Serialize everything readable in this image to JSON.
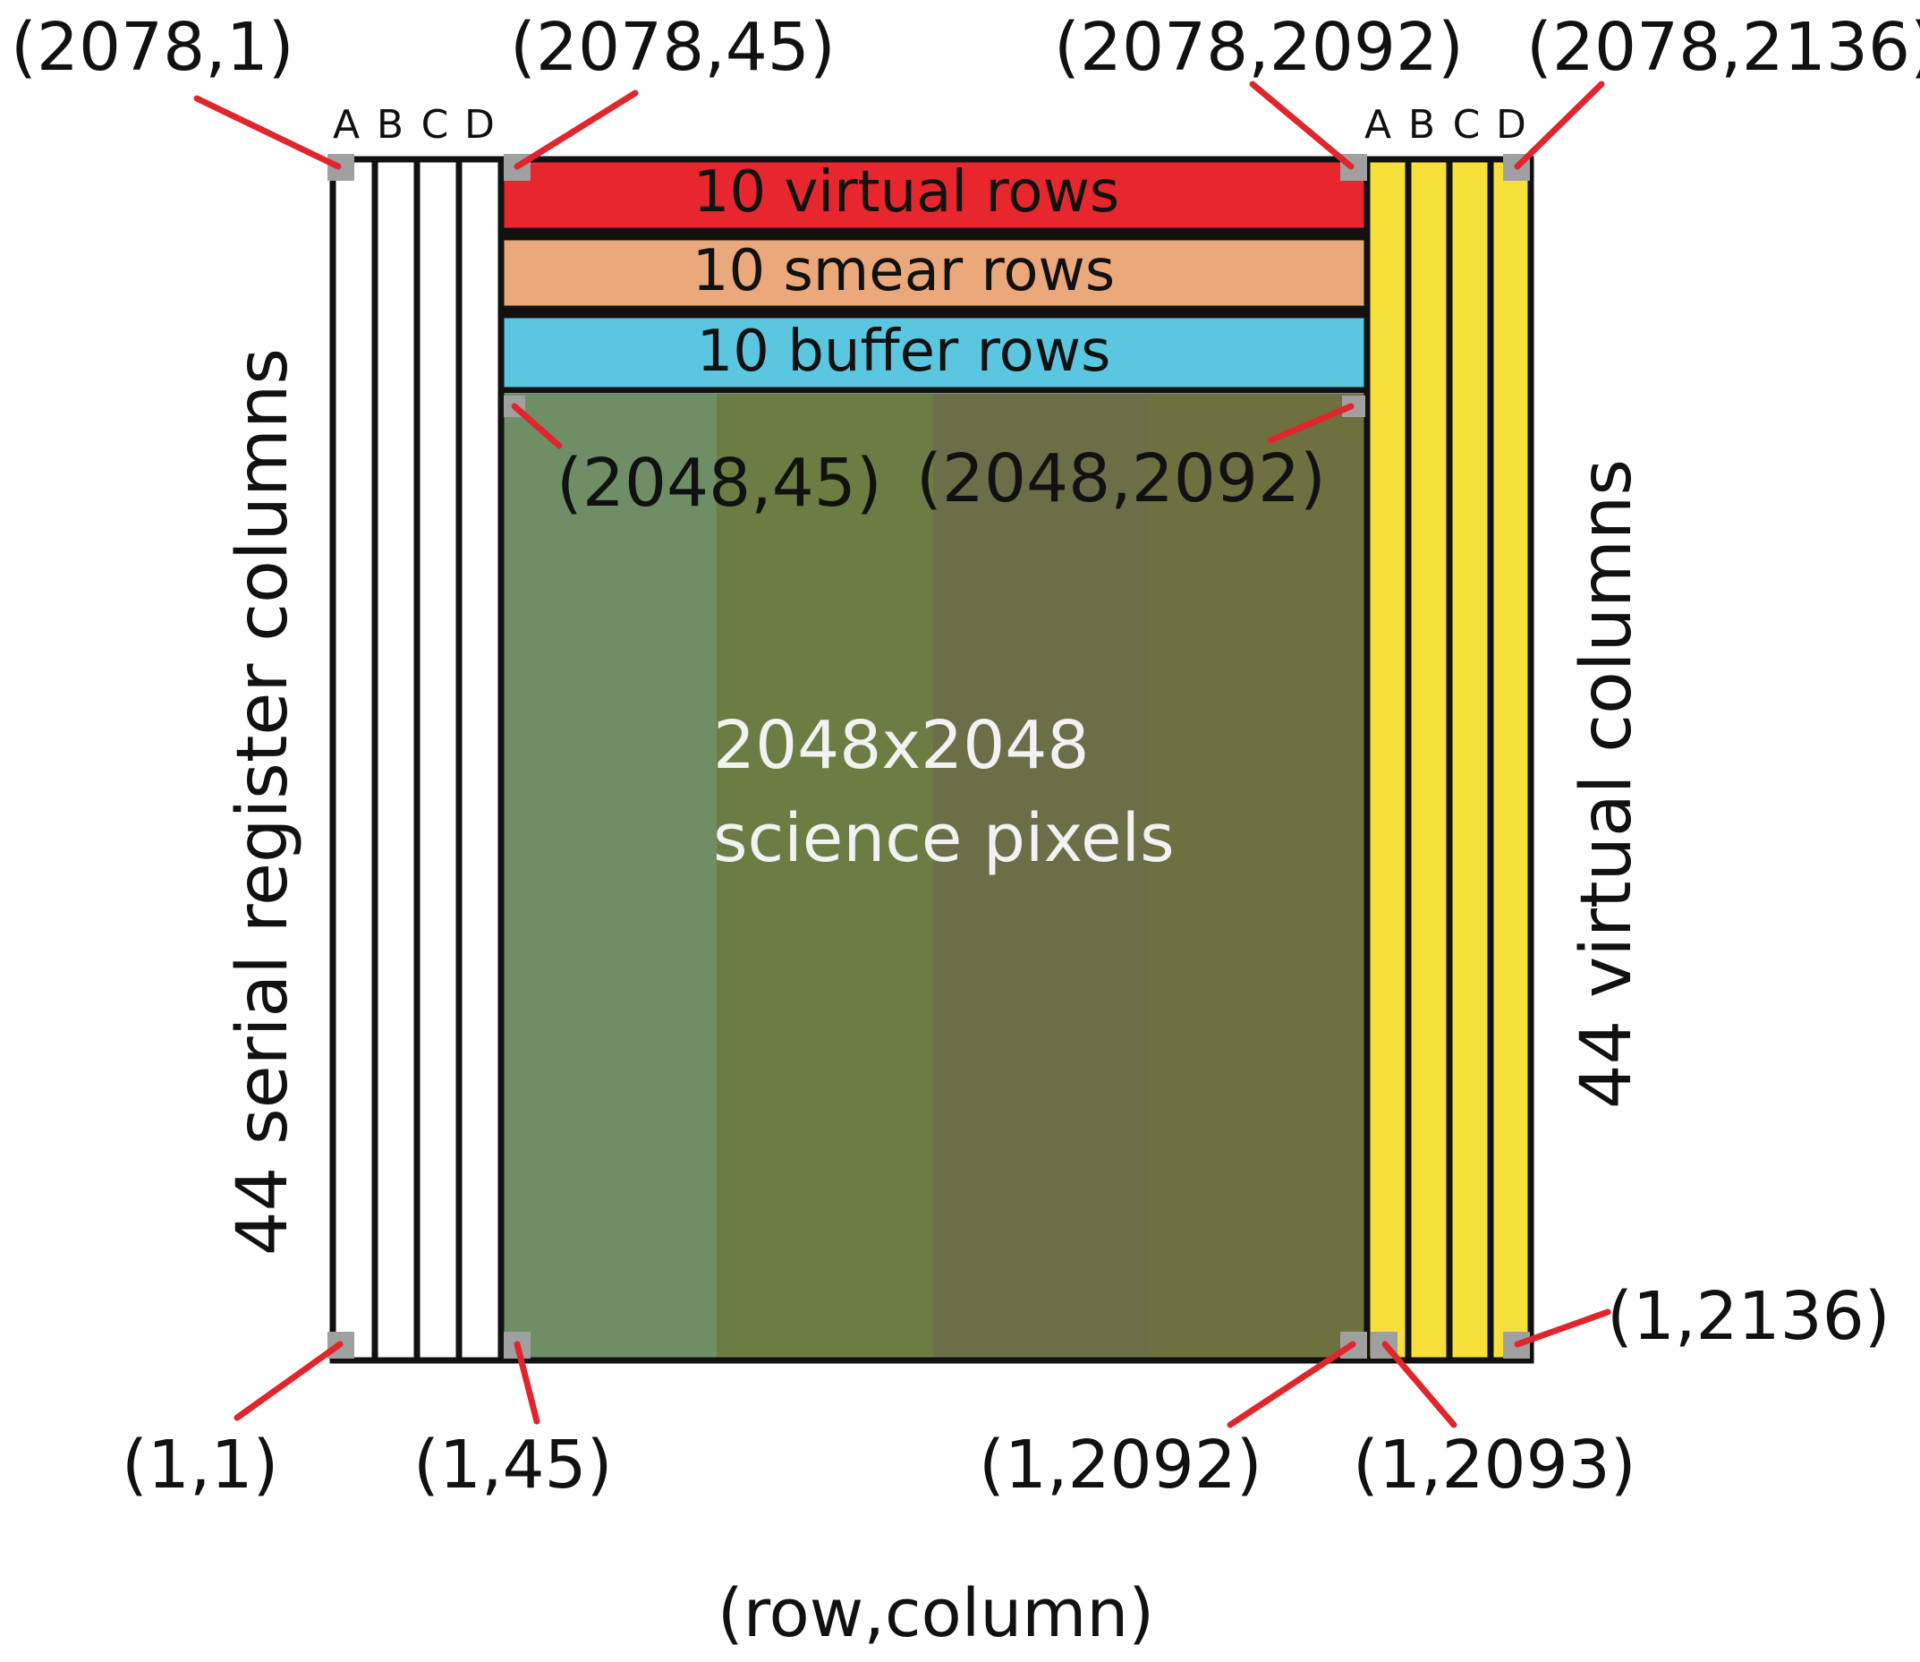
{
  "diagram": {
    "left_block": {
      "letters": [
        "A",
        "B",
        "C",
        "D"
      ],
      "label": "44 serial register columns"
    },
    "right_block": {
      "letters": [
        "A",
        "B",
        "C",
        "D"
      ],
      "label": "44 virtual columns"
    },
    "bands": [
      {
        "label": "10 virtual rows",
        "color": "#e8262e"
      },
      {
        "label": "10 smear rows",
        "color": "#eba87a"
      },
      {
        "label": "10 buffer rows",
        "color": "#5bc6e0"
      }
    ],
    "science": {
      "line1": "2048x2048",
      "line2": "science pixels",
      "stripe_colors": [
        "#708e66",
        "#6c7d44",
        "#6c6e48",
        "#6e7040"
      ]
    },
    "corners": {
      "top_left_outer": "(2078,1)",
      "top_left_inner": "(2078,45)",
      "top_right_inner": "(2078,2092)",
      "top_right_outer": "(2078,2136)",
      "science_top_left": "(2048,45)",
      "science_top_right": "(2048,2092)",
      "bottom_left_outer": "(1,1)",
      "bottom_left_inner": "(1,45)",
      "bottom_science_right": "(1,2092)",
      "bottom_virtual_left": "(1,2093)",
      "bottom_right_outer": "(1,2136)"
    },
    "axis_note": "(row,column)",
    "colors": {
      "virtual_columns": "#f7e03a",
      "serial_columns": "#ffffff",
      "leader": "#e0262c",
      "marker": "#a0a0a0"
    }
  }
}
